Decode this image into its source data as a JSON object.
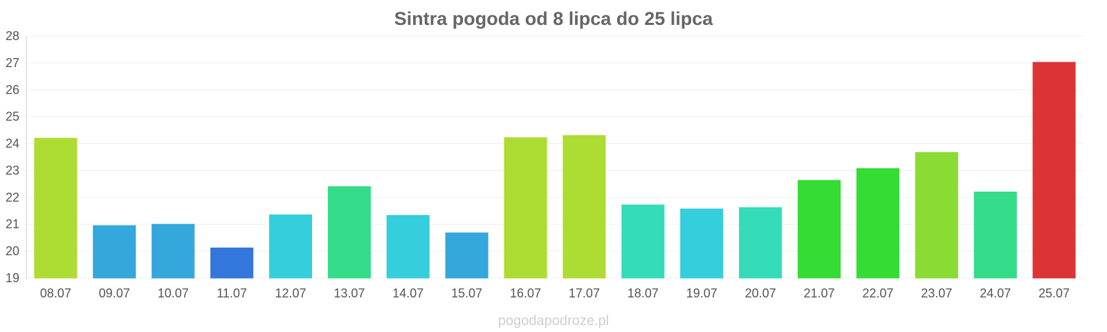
{
  "chart_data": {
    "type": "bar",
    "title": "Sintra pogoda od 8 lipca do 25 lipca",
    "xlabel": "",
    "ylabel": "",
    "ylim": [
      19,
      28
    ],
    "yticks": [
      19,
      20,
      21,
      22,
      23,
      24,
      25,
      26,
      27,
      28
    ],
    "grid": true,
    "legend": "none",
    "categories": [
      "08.07",
      "09.07",
      "10.07",
      "11.07",
      "12.07",
      "13.07",
      "14.07",
      "15.07",
      "16.07",
      "17.07",
      "18.07",
      "19.07",
      "20.07",
      "21.07",
      "22.07",
      "23.07",
      "24.07",
      "25.07"
    ],
    "values": [
      24.2,
      20.95,
      21.0,
      20.12,
      21.35,
      22.4,
      21.33,
      20.68,
      24.22,
      24.3,
      21.72,
      21.57,
      21.62,
      22.63,
      23.07,
      23.67,
      22.2,
      27.02
    ],
    "colors": [
      "#addc33",
      "#34a7dc",
      "#34a7dc",
      "#3477dc",
      "#34cedc",
      "#34dc8a",
      "#34cedc",
      "#34a7dc",
      "#addc33",
      "#addc33",
      "#34dcba",
      "#34cedc",
      "#34dcba",
      "#34dc34",
      "#34dc34",
      "#8adc34",
      "#34dc8a",
      "#dc3434"
    ]
  },
  "watermark": "pogodapodroze.pl"
}
